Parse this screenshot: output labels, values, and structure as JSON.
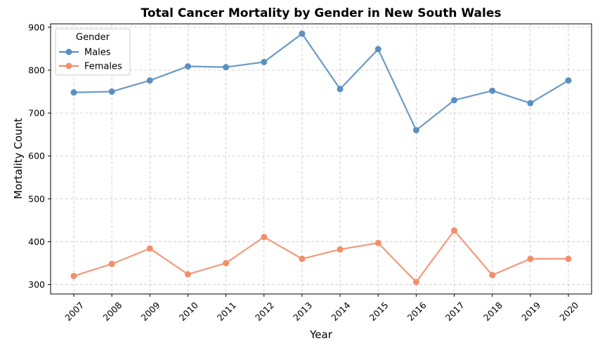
{
  "chart_data": {
    "type": "line",
    "title": "Total Cancer Mortality by Gender in New South Wales",
    "xlabel": "Year",
    "ylabel": "Mortality Count",
    "categories": [
      "2007",
      "2008",
      "2009",
      "2010",
      "2011",
      "2012",
      "2013",
      "2014",
      "2015",
      "2016",
      "2017",
      "2018",
      "2019",
      "2020"
    ],
    "yticks": [
      300,
      400,
      500,
      600,
      700,
      800,
      900
    ],
    "ylim": [
      278,
      908
    ],
    "grid": true,
    "legend": {
      "title": "Gender",
      "placement": "top-left"
    },
    "series": [
      {
        "name": "Males",
        "color": "#5b8fc0",
        "values": [
          748,
          750,
          776,
          809,
          807,
          819,
          885,
          756,
          849,
          660,
          730,
          752,
          723,
          776
        ]
      },
      {
        "name": "Females",
        "color": "#f28e6b",
        "values": [
          320,
          348,
          384,
          324,
          350,
          411,
          360,
          382,
          397,
          306,
          426,
          322,
          360,
          360
        ]
      }
    ]
  }
}
